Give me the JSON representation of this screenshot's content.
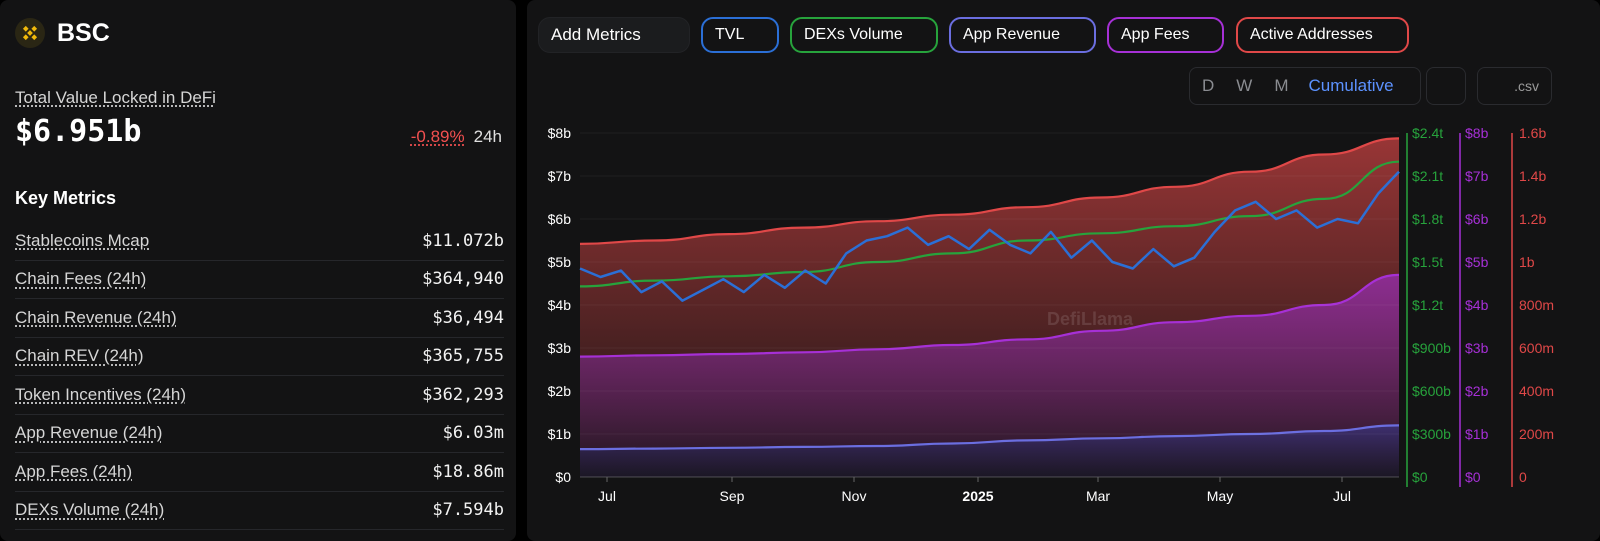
{
  "chain": {
    "name": "BSC"
  },
  "tvl": {
    "label": "Total Value Locked in DeFi",
    "value": "$6.951b",
    "change": "-0.89%",
    "period": "24h"
  },
  "key_metrics": {
    "title": "Key Metrics",
    "items": [
      {
        "label": "Stablecoins Mcap",
        "value": "$11.072b"
      },
      {
        "label": "Chain Fees (24h)",
        "value": "$364,940"
      },
      {
        "label": "Chain Revenue (24h)",
        "value": "$36,494"
      },
      {
        "label": "Chain REV (24h)",
        "value": "$365,755"
      },
      {
        "label": "Token Incentives (24h)",
        "value": "$362,293"
      },
      {
        "label": "App Revenue (24h)",
        "value": "$6.03m"
      },
      {
        "label": "App Fees (24h)",
        "value": "$18.86m"
      },
      {
        "label": "DEXs Volume (24h)",
        "value": "$7.594b"
      }
    ]
  },
  "toolbar": {
    "add_metrics": "Add Metrics",
    "pills": [
      {
        "label": "TVL",
        "color": "#2b6fd6"
      },
      {
        "label": "DEXs Volume",
        "color": "#27a33c"
      },
      {
        "label": "App Revenue",
        "color": "#6b6ee0"
      },
      {
        "label": "App Fees",
        "color": "#a630d6"
      },
      {
        "label": "Active Addresses",
        "color": "#e04848"
      }
    ],
    "periods": [
      "D",
      "W",
      "M"
    ],
    "cumulative": "Cumulative",
    "csv": ".csv"
  },
  "chart_data": {
    "type": "area",
    "watermark": "DefiLlama",
    "x_ticks": [
      "Jul",
      "Sep",
      "Nov",
      "2025",
      "Mar",
      "May",
      "Jul"
    ],
    "axes": {
      "left": {
        "ticks": [
          "$0",
          "$1b",
          "$2b",
          "$3b",
          "$4b",
          "$5b",
          "$6b",
          "$7b",
          "$8b"
        ],
        "range": [
          0,
          8
        ],
        "color": "#ffffff"
      },
      "dex": {
        "ticks": [
          "$0",
          "$300b",
          "$600b",
          "$900b",
          "$1.2t",
          "$1.5t",
          "$1.8t",
          "$2.1t",
          "$2.4t"
        ],
        "range": [
          0,
          2.4
        ],
        "color": "#27a33c"
      },
      "fees": {
        "ticks": [
          "$0",
          "$1b",
          "$2b",
          "$3b",
          "$4b",
          "$5b",
          "$6b",
          "$7b",
          "$8b"
        ],
        "range": [
          0,
          8
        ],
        "color": "#a630d6"
      },
      "addresses": {
        "ticks": [
          "0",
          "200m",
          "400m",
          "600m",
          "800m",
          "1b",
          "1.2b",
          "1.4b",
          "1.6b"
        ],
        "range": [
          0,
          1.6
        ],
        "color": "#e04848"
      }
    },
    "series": [
      {
        "name": "Active Addresses",
        "color": "#e04848",
        "axis": "addresses",
        "fill": true,
        "values": [
          1.084,
          1.1,
          1.13,
          1.16,
          1.19,
          1.22,
          1.255,
          1.3,
          1.35,
          1.42,
          1.5,
          1.575
        ]
      },
      {
        "name": "App Fees",
        "color": "#a630d6",
        "axis": "fees",
        "fill": true,
        "values": [
          2.8,
          2.83,
          2.86,
          2.9,
          2.97,
          3.07,
          3.2,
          3.4,
          3.6,
          3.75,
          4.0,
          4.7
        ]
      },
      {
        "name": "App Revenue",
        "color": "#6b6ee0",
        "axis": "fees",
        "fill": true,
        "values": [
          0.65,
          0.66,
          0.68,
          0.7,
          0.72,
          0.78,
          0.85,
          0.9,
          0.95,
          1.0,
          1.07,
          1.2
        ]
      },
      {
        "name": "DEXs Volume",
        "color": "#27a33c",
        "axis": "dex",
        "fill": false,
        "values": [
          1.33,
          1.37,
          1.4,
          1.43,
          1.5,
          1.56,
          1.65,
          1.7,
          1.75,
          1.82,
          1.94,
          2.2
        ]
      },
      {
        "name": "TVL",
        "color": "#2b6fd6",
        "axis": "left",
        "fill": false,
        "values": [
          4.85,
          4.65,
          4.8,
          4.3,
          4.55,
          4.1,
          4.35,
          4.6,
          4.3,
          4.7,
          4.4,
          4.8,
          4.5,
          5.2,
          5.5,
          5.6,
          5.8,
          5.4,
          5.6,
          5.3,
          5.75,
          5.4,
          5.2,
          5.7,
          5.1,
          5.5,
          5.0,
          4.85,
          5.3,
          4.9,
          5.1,
          5.7,
          6.2,
          6.4,
          6.0,
          6.2,
          5.8,
          6.0,
          5.9,
          6.6,
          7.1
        ]
      }
    ]
  }
}
